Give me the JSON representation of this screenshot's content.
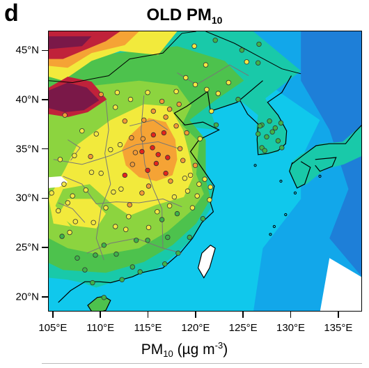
{
  "panel_letter": "d",
  "title": {
    "main": "OLD PM",
    "sub": "10"
  },
  "map": {
    "lon_range": [
      104.5,
      137.5
    ],
    "lat_range": [
      18.5,
      47.0
    ],
    "y_ticks": [
      {
        "label": "45°N",
        "lat": 45
      },
      {
        "label": "40°N",
        "lat": 40
      },
      {
        "label": "35°N",
        "lat": 35
      },
      {
        "label": "30°N",
        "lat": 30
      },
      {
        "label": "25°N",
        "lat": 25
      },
      {
        "label": "20°N",
        "lat": 20
      }
    ],
    "x_ticks": [
      {
        "label": "105°E",
        "lon": 105
      },
      {
        "label": "110°E",
        "lon": 110
      },
      {
        "label": "115°E",
        "lon": 115
      },
      {
        "label": "120°E",
        "lon": 120
      },
      {
        "label": "125°E",
        "lon": 125
      },
      {
        "label": "130°E",
        "lon": 130
      },
      {
        "label": "135°E",
        "lon": 135
      }
    ],
    "colors": {
      "ocean_far": "#1e7fd8",
      "ocean_mid": "#12a7ea",
      "ocean_near": "#10c8ec",
      "land_low": "#19c9a9",
      "land_mid": "#4dc24d",
      "land_green": "#8cd43f",
      "land_yellow": "#f2ea3c",
      "land_orange": "#f5a335",
      "desert_red": "#c0223a",
      "desert_maroon": "#7a1848",
      "blank": "#ffffff"
    }
  },
  "stations": [
    {
      "lon": 116.4,
      "lat": 39.9,
      "level": "orange"
    },
    {
      "lon": 117.2,
      "lat": 39.1,
      "level": "orange"
    },
    {
      "lon": 114.5,
      "lat": 38.0,
      "level": "orange"
    },
    {
      "lon": 115.5,
      "lat": 36.5,
      "level": "red"
    },
    {
      "lon": 116.0,
      "lat": 34.5,
      "level": "red"
    },
    {
      "lon": 114.3,
      "lat": 34.8,
      "level": "red"
    },
    {
      "lon": 113.6,
      "lat": 34.7,
      "level": "orange"
    },
    {
      "lon": 115.8,
      "lat": 33.6,
      "level": "red"
    },
    {
      "lon": 117.0,
      "lat": 34.2,
      "level": "red"
    },
    {
      "lon": 118.3,
      "lat": 35.1,
      "level": "orange"
    },
    {
      "lon": 117.3,
      "lat": 31.8,
      "level": "orange"
    },
    {
      "lon": 114.9,
      "lat": 32.9,
      "level": "red"
    },
    {
      "lon": 112.5,
      "lat": 32.4,
      "level": "red"
    },
    {
      "lon": 113.3,
      "lat": 33.5,
      "level": "orange"
    },
    {
      "lon": 118.8,
      "lat": 32.1,
      "level": "yellow"
    },
    {
      "lon": 120.3,
      "lat": 31.5,
      "level": "yellow"
    },
    {
      "lon": 121.5,
      "lat": 31.2,
      "level": "yellow"
    },
    {
      "lon": 120.1,
      "lat": 30.3,
      "level": "yellow"
    },
    {
      "lon": 119.0,
      "lat": 36.7,
      "level": "orange"
    },
    {
      "lon": 120.4,
      "lat": 36.1,
      "level": "yellow"
    },
    {
      "lon": 122.1,
      "lat": 37.5,
      "level": "green"
    },
    {
      "lon": 121.6,
      "lat": 38.9,
      "level": "yellow"
    },
    {
      "lon": 123.4,
      "lat": 41.8,
      "level": "yellow"
    },
    {
      "lon": 125.3,
      "lat": 43.9,
      "level": "yellow"
    },
    {
      "lon": 126.6,
      "lat": 45.7,
      "level": "green"
    },
    {
      "lon": 121.1,
      "lat": 41.1,
      "level": "yellow"
    },
    {
      "lon": 119.9,
      "lat": 41.6,
      "level": "yellow"
    },
    {
      "lon": 111.7,
      "lat": 40.8,
      "level": "yellow"
    },
    {
      "lon": 110.0,
      "lat": 40.6,
      "level": "orange"
    },
    {
      "lon": 112.5,
      "lat": 37.9,
      "level": "orange"
    },
    {
      "lon": 108.9,
      "lat": 34.3,
      "level": "orange"
    },
    {
      "lon": 106.2,
      "lat": 38.5,
      "level": "orange"
    },
    {
      "lon": 103.8,
      "lat": 36.1,
      "level": "yellow"
    },
    {
      "lon": 107.2,
      "lat": 34.4,
      "level": "yellow"
    },
    {
      "lon": 109.5,
      "lat": 36.6,
      "level": "yellow"
    },
    {
      "lon": 111.0,
      "lat": 35.0,
      "level": "yellow"
    },
    {
      "lon": 112.9,
      "lat": 28.2,
      "level": "yellow"
    },
    {
      "lon": 114.3,
      "lat": 30.6,
      "level": "orange"
    },
    {
      "lon": 115.9,
      "lat": 28.7,
      "level": "yellow"
    },
    {
      "lon": 117.0,
      "lat": 26.1,
      "level": "green"
    },
    {
      "lon": 119.3,
      "lat": 26.1,
      "level": "green"
    },
    {
      "lon": 113.3,
      "lat": 23.1,
      "level": "green"
    },
    {
      "lon": 114.1,
      "lat": 22.6,
      "level": "green"
    },
    {
      "lon": 110.3,
      "lat": 25.3,
      "level": "green"
    },
    {
      "lon": 108.3,
      "lat": 22.8,
      "level": "green"
    },
    {
      "lon": 106.7,
      "lat": 26.6,
      "level": "yellow"
    },
    {
      "lon": 106.5,
      "lat": 29.6,
      "level": "yellow"
    },
    {
      "lon": 107.0,
      "lat": 30.3,
      "level": "yellow"
    },
    {
      "lon": 108.4,
      "lat": 30.9,
      "level": "yellow"
    },
    {
      "lon": 109.2,
      "lat": 27.6,
      "level": "yellow"
    },
    {
      "lon": 111.5,
      "lat": 27.2,
      "level": "yellow"
    },
    {
      "lon": 111.3,
      "lat": 30.7,
      "level": "yellow"
    },
    {
      "lon": 113.0,
      "lat": 29.4,
      "level": "orange"
    },
    {
      "lon": 115.0,
      "lat": 27.1,
      "level": "yellow"
    },
    {
      "lon": 116.4,
      "lat": 27.9,
      "level": "green"
    },
    {
      "lon": 118.0,
      "lat": 28.5,
      "level": "green"
    },
    {
      "lon": 119.6,
      "lat": 29.1,
      "level": "yellow"
    },
    {
      "lon": 120.7,
      "lat": 28.0,
      "level": "green"
    },
    {
      "lon": 118.1,
      "lat": 24.5,
      "level": "green"
    },
    {
      "lon": 116.7,
      "lat": 23.4,
      "level": "green"
    },
    {
      "lon": 112.2,
      "lat": 21.8,
      "level": "green"
    },
    {
      "lon": 109.1,
      "lat": 21.5,
      "level": "green"
    },
    {
      "lon": 107.5,
      "lat": 24.0,
      "level": "green"
    },
    {
      "lon": 105.9,
      "lat": 26.2,
      "level": "green"
    },
    {
      "lon": 105.5,
      "lat": 28.8,
      "level": "yellow"
    },
    {
      "lon": 106.1,
      "lat": 31.5,
      "level": "yellow"
    },
    {
      "lon": 105.7,
      "lat": 34.0,
      "level": "yellow"
    },
    {
      "lon": 126.9,
      "lat": 37.5,
      "level": "green"
    },
    {
      "lon": 127.4,
      "lat": 36.3,
      "level": "green"
    },
    {
      "lon": 128.6,
      "lat": 35.9,
      "level": "green"
    },
    {
      "lon": 129.0,
      "lat": 35.2,
      "level": "green"
    },
    {
      "lon": 126.9,
      "lat": 35.2,
      "level": "green"
    },
    {
      "lon": 127.7,
      "lat": 37.9,
      "level": "green"
    },
    {
      "lon": 126.7,
      "lat": 37.4,
      "level": "green"
    },
    {
      "lon": 128.0,
      "lat": 36.8,
      "level": "green"
    },
    {
      "lon": 127.2,
      "lat": 34.9,
      "level": "green"
    },
    {
      "lon": 128.3,
      "lat": 37.2,
      "level": "green"
    },
    {
      "lon": 126.5,
      "lat": 36.6,
      "level": "green"
    },
    {
      "lon": 128.9,
      "lat": 37.7,
      "level": "green"
    },
    {
      "lon": 118.2,
      "lat": 39.6,
      "level": "orange"
    },
    {
      "lon": 115.5,
      "lat": 38.9,
      "level": "orange"
    },
    {
      "lon": 116.8,
      "lat": 38.3,
      "level": "orange"
    },
    {
      "lon": 117.9,
      "lat": 37.4,
      "level": "orange"
    },
    {
      "lon": 116.6,
      "lat": 36.7,
      "level": "red"
    },
    {
      "lon": 115.4,
      "lat": 35.2,
      "level": "red"
    },
    {
      "lon": 118.6,
      "lat": 33.9,
      "level": "orange"
    },
    {
      "lon": 116.8,
      "lat": 32.6,
      "level": "red"
    },
    {
      "lon": 119.4,
      "lat": 32.4,
      "level": "yellow"
    },
    {
      "lon": 112.0,
      "lat": 35.5,
      "level": "yellow"
    },
    {
      "lon": 113.2,
      "lat": 36.2,
      "level": "orange"
    },
    {
      "lon": 114.4,
      "lat": 36.1,
      "level": "orange"
    },
    {
      "lon": 110.5,
      "lat": 29.1,
      "level": "yellow"
    },
    {
      "lon": 113.7,
      "lat": 25.8,
      "level": "green"
    },
    {
      "lon": 112.6,
      "lat": 26.9,
      "level": "yellow"
    },
    {
      "lon": 114.9,
      "lat": 25.8,
      "level": "green"
    },
    {
      "lon": 109.4,
      "lat": 24.3,
      "level": "green"
    },
    {
      "lon": 111.6,
      "lat": 24.4,
      "level": "green"
    },
    {
      "lon": 107.3,
      "lat": 27.7,
      "level": "yellow"
    },
    {
      "lon": 104.8,
      "lat": 30.6,
      "level": "yellow"
    },
    {
      "lon": 108.0,
      "lat": 36.9,
      "level": "yellow"
    },
    {
      "lon": 111.5,
      "lat": 39.3,
      "level": "yellow"
    },
    {
      "lon": 113.1,
      "lat": 40.1,
      "level": "yellow"
    },
    {
      "lon": 114.9,
      "lat": 40.8,
      "level": "yellow"
    },
    {
      "lon": 117.9,
      "lat": 40.9,
      "level": "yellow"
    },
    {
      "lon": 122.3,
      "lat": 40.7,
      "level": "yellow"
    },
    {
      "lon": 124.4,
      "lat": 40.1,
      "level": "green"
    },
    {
      "lon": 126.5,
      "lat": 43.8,
      "level": "green"
    },
    {
      "lon": 124.8,
      "lat": 45.1,
      "level": "green"
    },
    {
      "lon": 122.0,
      "lat": 46.1,
      "level": "green"
    },
    {
      "lon": 119.8,
      "lat": 45.5,
      "level": "yellow"
    },
    {
      "lon": 121.0,
      "lat": 43.6,
      "level": "yellow"
    },
    {
      "lon": 118.9,
      "lat": 42.3,
      "level": "yellow"
    },
    {
      "lon": 119.1,
      "lat": 30.8,
      "level": "yellow"
    },
    {
      "lon": 121.4,
      "lat": 29.9,
      "level": "yellow"
    },
    {
      "lon": 117.7,
      "lat": 30.2,
      "level": "yellow"
    },
    {
      "lon": 115.0,
      "lat": 31.3,
      "level": "orange"
    },
    {
      "lon": 112.1,
      "lat": 31.0,
      "level": "yellow"
    },
    {
      "lon": 110.0,
      "lat": 32.6,
      "level": "yellow"
    },
    {
      "lon": 109.0,
      "lat": 32.7,
      "level": "yellow"
    },
    {
      "lon": 120.9,
      "lat": 32.0,
      "level": "yellow"
    },
    {
      "lon": 119.9,
      "lat": 33.4,
      "level": "orange"
    },
    {
      "lon": 117.2,
      "lat": 29.3,
      "level": "yellow"
    },
    {
      "lon": 110.3,
      "lat": 20.0,
      "level": "green"
    }
  ],
  "xlabel": {
    "main": "PM",
    "sub": "10",
    "unit_open": " (µg m",
    "sup": "-3",
    "unit_close": ")"
  }
}
